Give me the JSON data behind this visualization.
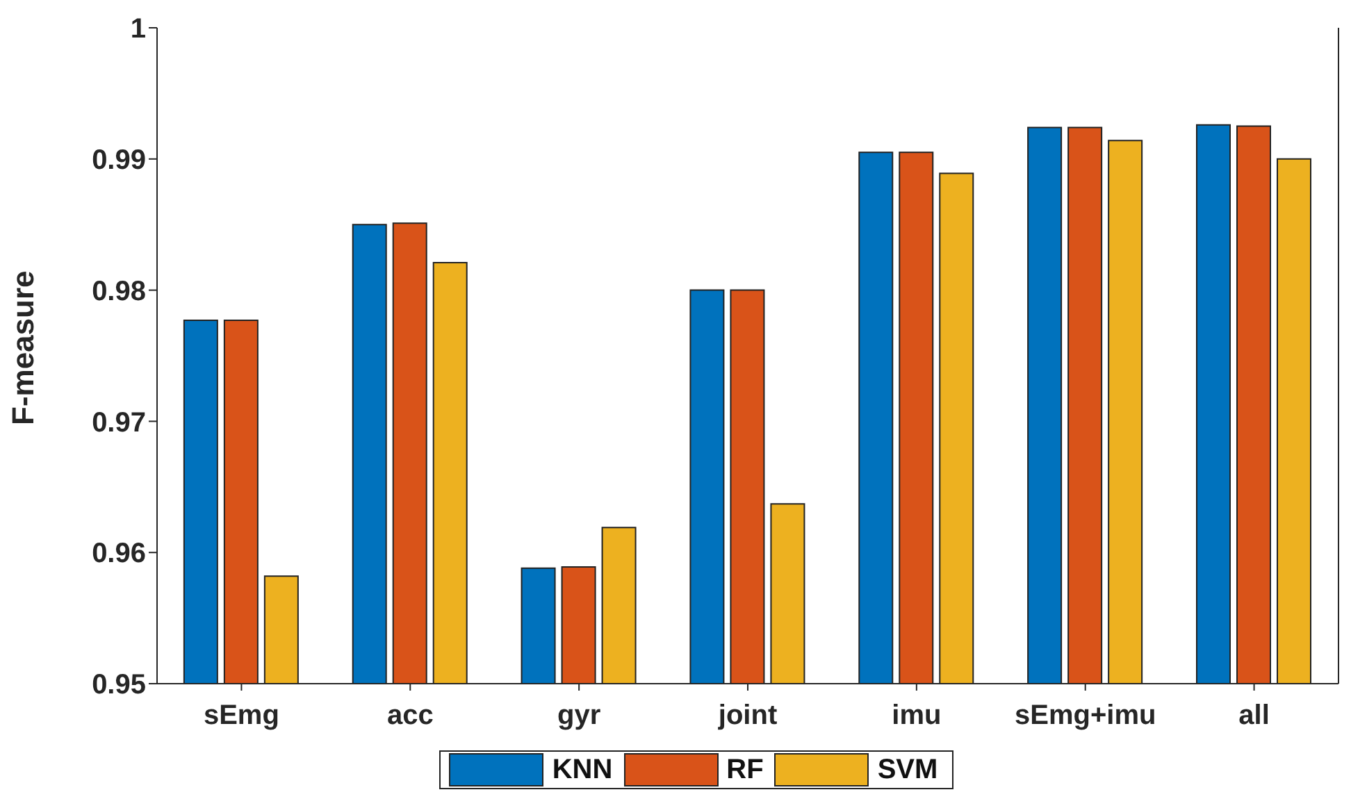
{
  "chart_data": {
    "type": "bar",
    "ylabel": "F-measure",
    "categories": [
      "sEmg",
      "acc",
      "gyr",
      "joint",
      "imu",
      "sEmg+imu",
      "all"
    ],
    "series": [
      {
        "name": "KNN",
        "color": "#0072bd",
        "values": [
          0.9777,
          0.985,
          0.9588,
          0.98,
          0.9905,
          0.9924,
          0.9926
        ]
      },
      {
        "name": "RF",
        "color": "#d95319",
        "values": [
          0.9777,
          0.9851,
          0.9589,
          0.98,
          0.9905,
          0.9924,
          0.9925
        ]
      },
      {
        "name": "SVM",
        "color": "#edb120",
        "values": [
          0.9582,
          0.9821,
          0.9619,
          0.9637,
          0.9889,
          0.9914,
          0.99
        ]
      }
    ],
    "ylim": [
      0.95,
      1
    ],
    "yticks": [
      0.95,
      0.96,
      0.97,
      0.98,
      0.99,
      1
    ],
    "grid": false,
    "legend": "bottom"
  }
}
